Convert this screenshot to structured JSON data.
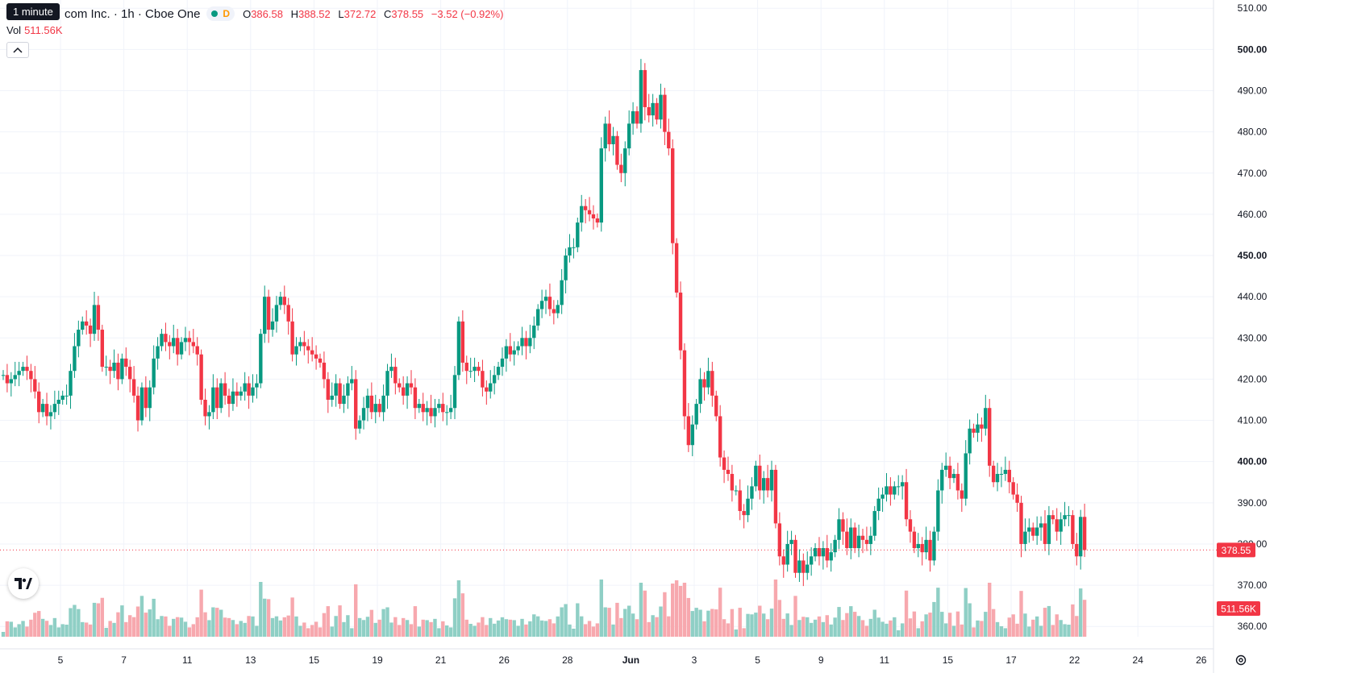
{
  "header": {
    "symbol_title": "com Inc. · 1h · Cboe One",
    "interval_tooltip": "1 minute",
    "status_label": "D",
    "ohlc": {
      "o_label": "O",
      "o": "386.58",
      "h_label": "H",
      "h": "388.52",
      "l_label": "L",
      "l": "372.72",
      "c_label": "C",
      "c": "378.55",
      "change": "−3.52 (−0.92%)"
    },
    "volume_label": "Vol",
    "volume_value": "511.56K"
  },
  "price_axis": {
    "last_price_badge": "378.55",
    "last_volume_badge": "511.56K"
  },
  "icons": {
    "collapse": "chevron-up-icon",
    "logo": "tradingview-logo",
    "settings": "gear-icon"
  },
  "colors": {
    "up": "#089981",
    "down": "#f23645",
    "up_volume": "#8fcfc5",
    "down_volume": "#f7a8ae",
    "grid": "#f0f3fa",
    "last_price_line": "#f23645"
  },
  "chart_data": {
    "type": "candlestick",
    "interval": "1h",
    "y_axis": {
      "ticks": [
        360,
        370,
        380,
        390,
        400,
        410,
        420,
        430,
        440,
        450,
        460,
        470,
        480,
        490,
        500,
        510
      ],
      "tick_labels": [
        "360.00",
        "370.00",
        "380.00",
        "390.00",
        "400.00",
        "410.00",
        "420.00",
        "430.00",
        "440.00",
        "450.00",
        "460.00",
        "470.00",
        "480.00",
        "490.00",
        "500.00",
        "510.00"
      ],
      "ylim": [
        357.5,
        512
      ],
      "position": "right"
    },
    "x_axis": {
      "tick_labels": [
        "5",
        "7",
        "11",
        "13",
        "15",
        "19",
        "21",
        "26",
        "28",
        "Jun",
        "3",
        "5",
        "9",
        "11",
        "15",
        "17",
        "22",
        "24",
        "26"
      ]
    },
    "grid": true,
    "segments": [
      {
        "label": "5",
        "prices": [
          421,
          419,
          420,
          421,
          422,
          423,
          422,
          420,
          417,
          412,
          414,
          411,
          412,
          414,
          415,
          416
        ]
      },
      {
        "label": "7",
        "prices": [
          416,
          422,
          428,
          432,
          434,
          433,
          431,
          438,
          432,
          423,
          423,
          422,
          424,
          420,
          425,
          423
        ]
      },
      {
        "label": "11",
        "prices": [
          420,
          416,
          410,
          418,
          413,
          418,
          425,
          428,
          431,
          429,
          428,
          430,
          426,
          429,
          430,
          429
        ]
      },
      {
        "label": "13",
        "prices": [
          428,
          426,
          415,
          411,
          412,
          418,
          413,
          419,
          416,
          414,
          417,
          416,
          417,
          419,
          416,
          418
        ]
      },
      {
        "label": "15",
        "prices": [
          419,
          431,
          440,
          432,
          434,
          438,
          440,
          438,
          434,
          426,
          428,
          429,
          428,
          427,
          426,
          425
        ]
      },
      {
        "label": "19",
        "prices": [
          424,
          420,
          415,
          416,
          419,
          414,
          416,
          419,
          420,
          408,
          410,
          413,
          416,
          412,
          414,
          412
        ]
      },
      {
        "label": "21",
        "prices": [
          416,
          422,
          423,
          419,
          418,
          416,
          419,
          418,
          413,
          414,
          412,
          413,
          411,
          413,
          414,
          412
        ]
      },
      {
        "label": "26",
        "prices": [
          412,
          413,
          421,
          434,
          424,
          422,
          422,
          423,
          422,
          418,
          417,
          419,
          421,
          423,
          425,
          428
        ]
      },
      {
        "label": "28",
        "prices": [
          426,
          427,
          428,
          430,
          428,
          430,
          433,
          437,
          439,
          440,
          437,
          436,
          438,
          444,
          450,
          452
        ]
      },
      {
        "label": "Jun",
        "prices": [
          452,
          458,
          462,
          461,
          460,
          459,
          458,
          476,
          482,
          477,
          479,
          472,
          470,
          476,
          482,
          485
        ]
      },
      {
        "label": "3",
        "prices": [
          482,
          495,
          486,
          484,
          487,
          483,
          489,
          480,
          476,
          453,
          441,
          427,
          411,
          404,
          409,
          414
        ]
      },
      {
        "label": "5",
        "prices": [
          420,
          418,
          422,
          416,
          411,
          401,
          398,
          397,
          393,
          393,
          388,
          387,
          391,
          394,
          399,
          393
        ]
      },
      {
        "label": "9",
        "prices": [
          396,
          393,
          398,
          385,
          377,
          375,
          380,
          381,
          373,
          376,
          373,
          375,
          377,
          379,
          377,
          379
        ]
      },
      {
        "label": "11",
        "prices": [
          376,
          378,
          381,
          386,
          383,
          379,
          384,
          379,
          382,
          381,
          380,
          382,
          388,
          391,
          392,
          394
        ]
      },
      {
        "label": "15",
        "prices": [
          392,
          394,
          394,
          395,
          386,
          383,
          379,
          380,
          378,
          381,
          376,
          383,
          393,
          398,
          399,
          396
        ]
      },
      {
        "label": "17",
        "prices": [
          397,
          393,
          391,
          402,
          408,
          407,
          409,
          408,
          413,
          399,
          395,
          397,
          397,
          398,
          395,
          392
        ]
      },
      {
        "label": "22",
        "prices": [
          390,
          380,
          383,
          384,
          382,
          384,
          385,
          380,
          387,
          386,
          383,
          386,
          387,
          387,
          380,
          377
        ]
      },
      {
        "label": "24",
        "prices": [
          386.58,
          378.55
        ]
      }
    ],
    "volume": {
      "label": "Vol",
      "last": "511.56K"
    },
    "last_price": 378.55
  }
}
